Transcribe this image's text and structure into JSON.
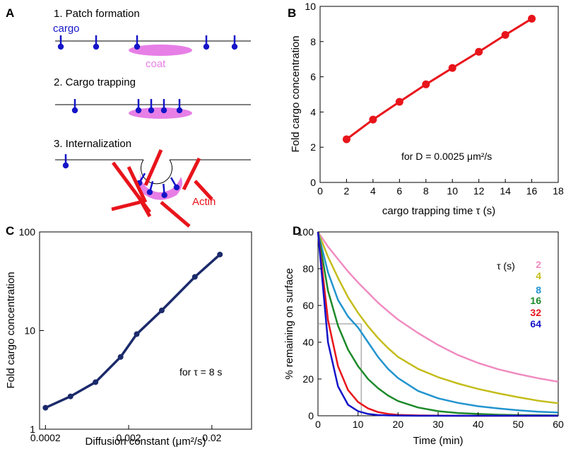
{
  "panels": {
    "a": {
      "label": "A",
      "step1": "1.  Patch formation",
      "step2": "2.  Cargo trapping",
      "step3": "3.  Internalization",
      "cargo": "cargo",
      "coat": "coat",
      "actin": "Actin",
      "colors": {
        "cargo": "#1515c8",
        "coat": "#e77fe6",
        "actin": "#e8141b",
        "line": "#000000"
      }
    },
    "b": {
      "label": "B",
      "annotation": "for D = 0.0025 μm²/s"
    },
    "c": {
      "label": "C",
      "annotation": "for τ = 8 s"
    },
    "d": {
      "label": "D",
      "legend_title": "τ (s)"
    }
  },
  "chart_data": [
    {
      "panel": "B",
      "type": "line",
      "xlabel": "cargo trapping time τ (s)",
      "ylabel": "Fold cargo concentration",
      "xlim": [
        0,
        18
      ],
      "ylim": [
        0,
        10
      ],
      "xticks": [
        0,
        2,
        4,
        6,
        8,
        10,
        12,
        14,
        16,
        18
      ],
      "yticks": [
        0,
        2,
        4,
        6,
        8,
        10
      ],
      "grid": false,
      "series": [
        {
          "color": "#e8141b",
          "x": [
            2,
            4,
            6,
            8,
            10,
            12,
            14,
            16
          ],
          "y": [
            2.45,
            3.57,
            4.58,
            5.57,
            6.5,
            7.42,
            8.38,
            9.3
          ]
        }
      ]
    },
    {
      "panel": "C",
      "type": "line",
      "xlabel": "Diffusion constant (μm²/s)",
      "ylabel": "Fold cargo concentration",
      "xscale": "log",
      "yscale": "log",
      "xlim": [
        0.00017,
        0.06
      ],
      "ylim": [
        1,
        100
      ],
      "xticks": [
        "0.0002",
        "0.002",
        "0.02"
      ],
      "yticks": [
        "1",
        "10",
        "100"
      ],
      "grid": false,
      "series": [
        {
          "color": "#1b2a6b",
          "x": [
            0.0002,
            0.0004,
            0.0008,
            0.0016,
            0.0025,
            0.005,
            0.0125,
            0.025
          ],
          "y": [
            1.65,
            2.15,
            3.0,
            5.4,
            9.2,
            16,
            35,
            59
          ]
        }
      ]
    },
    {
      "panel": "D",
      "type": "line",
      "xlabel": "Time (min)",
      "ylabel": "% remaining on surface",
      "xlim": [
        0,
        60
      ],
      "ylim": [
        0,
        100
      ],
      "xticks": [
        0,
        10,
        20,
        30,
        40,
        50,
        60
      ],
      "yticks": [
        0,
        20,
        40,
        60,
        80,
        100
      ],
      "grid": false,
      "guide": {
        "x": 10.8,
        "y": 50,
        "color": "#888888"
      },
      "legend": "right",
      "x": [
        0,
        2.5,
        5,
        7.5,
        10,
        12.5,
        15,
        17.5,
        20,
        25,
        30,
        35,
        40,
        45,
        50,
        55,
        60
      ],
      "series": [
        {
          "name": "2",
          "color": "#f08cc0",
          "y": [
            100,
            92,
            85.2,
            78.5,
            72.5,
            67,
            61.5,
            56.8,
            52.3,
            45,
            38.5,
            33,
            28.7,
            25.3,
            22.7,
            20.4,
            18.5
          ]
        },
        {
          "name": "4",
          "color": "#c4bd1b",
          "y": [
            100,
            86.5,
            75,
            64.5,
            56,
            48.7,
            42.3,
            36.8,
            32,
            25.5,
            21,
            17.5,
            14.6,
            12.2,
            10.1,
            8.2,
            6.8
          ]
        },
        {
          "name": "8",
          "color": "#2294cf",
          "y": [
            100,
            78,
            63,
            54,
            48,
            40,
            32,
            25.5,
            20.5,
            13.5,
            9.5,
            7,
            5.2,
            4,
            3,
            2.2,
            1.8
          ]
        },
        {
          "name": "16",
          "color": "#1d8a2a",
          "y": [
            100,
            68,
            49,
            36,
            27,
            20,
            15,
            11,
            8,
            4.5,
            2.5,
            1.5,
            1,
            0.6,
            0.4,
            0.3,
            0.2
          ]
        },
        {
          "name": "32",
          "color": "#e8141b",
          "y": [
            100,
            52,
            27,
            14,
            7.5,
            4,
            2,
            1,
            0.5,
            0.2,
            0.1,
            0,
            0,
            0,
            0,
            0,
            0
          ]
        },
        {
          "name": "64",
          "color": "#1515c8",
          "y": [
            100,
            40,
            16,
            6,
            2.5,
            1,
            0.4,
            0.2,
            0.1,
            0,
            0,
            0,
            0,
            0,
            0,
            0,
            0
          ]
        }
      ]
    }
  ]
}
